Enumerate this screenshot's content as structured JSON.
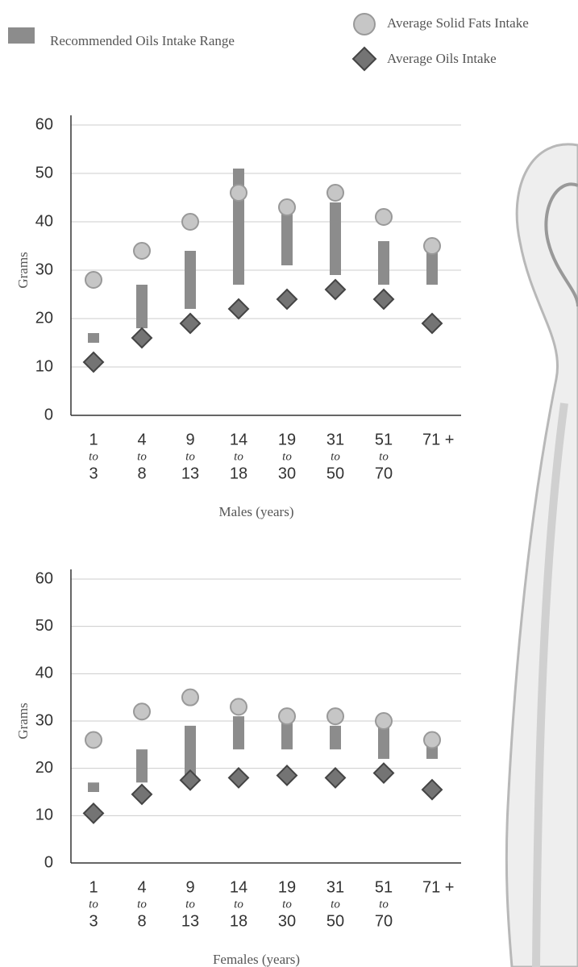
{
  "chart_data": [
    {
      "type": "bar",
      "y_label": "Grams",
      "x_label": "Males (years)",
      "categories": [
        [
          "1",
          "to",
          "3"
        ],
        [
          "4",
          "to",
          "8"
        ],
        [
          "9",
          "to",
          "13"
        ],
        [
          "14",
          "to",
          "18"
        ],
        [
          "19",
          "to",
          "30"
        ],
        [
          "31",
          "to",
          "50"
        ],
        [
          "51",
          "to",
          "70"
        ],
        [
          "71 +"
        ]
      ],
      "series": [
        {
          "name": "Recommended Oils Intake Range",
          "color": "#8c8c8c",
          "marker": "range",
          "low": [
            15,
            18,
            22,
            27,
            31,
            29,
            27,
            27
          ],
          "high": [
            17,
            27,
            34,
            51,
            43,
            44,
            36,
            34
          ]
        },
        {
          "name": "Average Solid Fats Intake",
          "color": "#c6c6c6",
          "marker": "circle",
          "values": [
            28,
            34,
            40,
            46,
            43,
            46,
            41,
            35
          ]
        },
        {
          "name": "Average Oils Intake",
          "color": "#747474",
          "marker": "diamond",
          "values": [
            11,
            16,
            19,
            22,
            24,
            26,
            24,
            19
          ]
        }
      ],
      "ylim": [
        0,
        60
      ],
      "yticks": [
        0,
        10,
        20,
        30,
        40,
        50,
        60
      ],
      "grid": true
    },
    {
      "type": "bar",
      "y_label": "Grams",
      "x_label": "Females (years)",
      "categories": [
        [
          "1",
          "to",
          "3"
        ],
        [
          "4",
          "to",
          "8"
        ],
        [
          "9",
          "to",
          "13"
        ],
        [
          "14",
          "to",
          "18"
        ],
        [
          "19",
          "to",
          "30"
        ],
        [
          "31",
          "to",
          "50"
        ],
        [
          "51",
          "to",
          "70"
        ],
        [
          "71 +"
        ]
      ],
      "series": [
        {
          "color": "#8c8c8c",
          "marker": "range",
          "low": [
            15,
            17,
            18,
            24,
            24,
            24,
            22,
            22
          ],
          "high": [
            17,
            24,
            29,
            31,
            31,
            29,
            29,
            27
          ]
        },
        {
          "color": "#c6c6c6",
          "marker": "circle",
          "values": [
            26,
            32,
            35,
            33,
            31,
            31,
            30,
            26
          ]
        },
        {
          "color": "#747474",
          "marker": "diamond",
          "values": [
            10.5,
            14.5,
            17.5,
            18,
            18.5,
            18,
            19,
            15.5
          ]
        }
      ],
      "ylim": [
        0,
        60
      ],
      "yticks": [
        0,
        10,
        20,
        30,
        40,
        50,
        60
      ],
      "grid": true
    }
  ]
}
